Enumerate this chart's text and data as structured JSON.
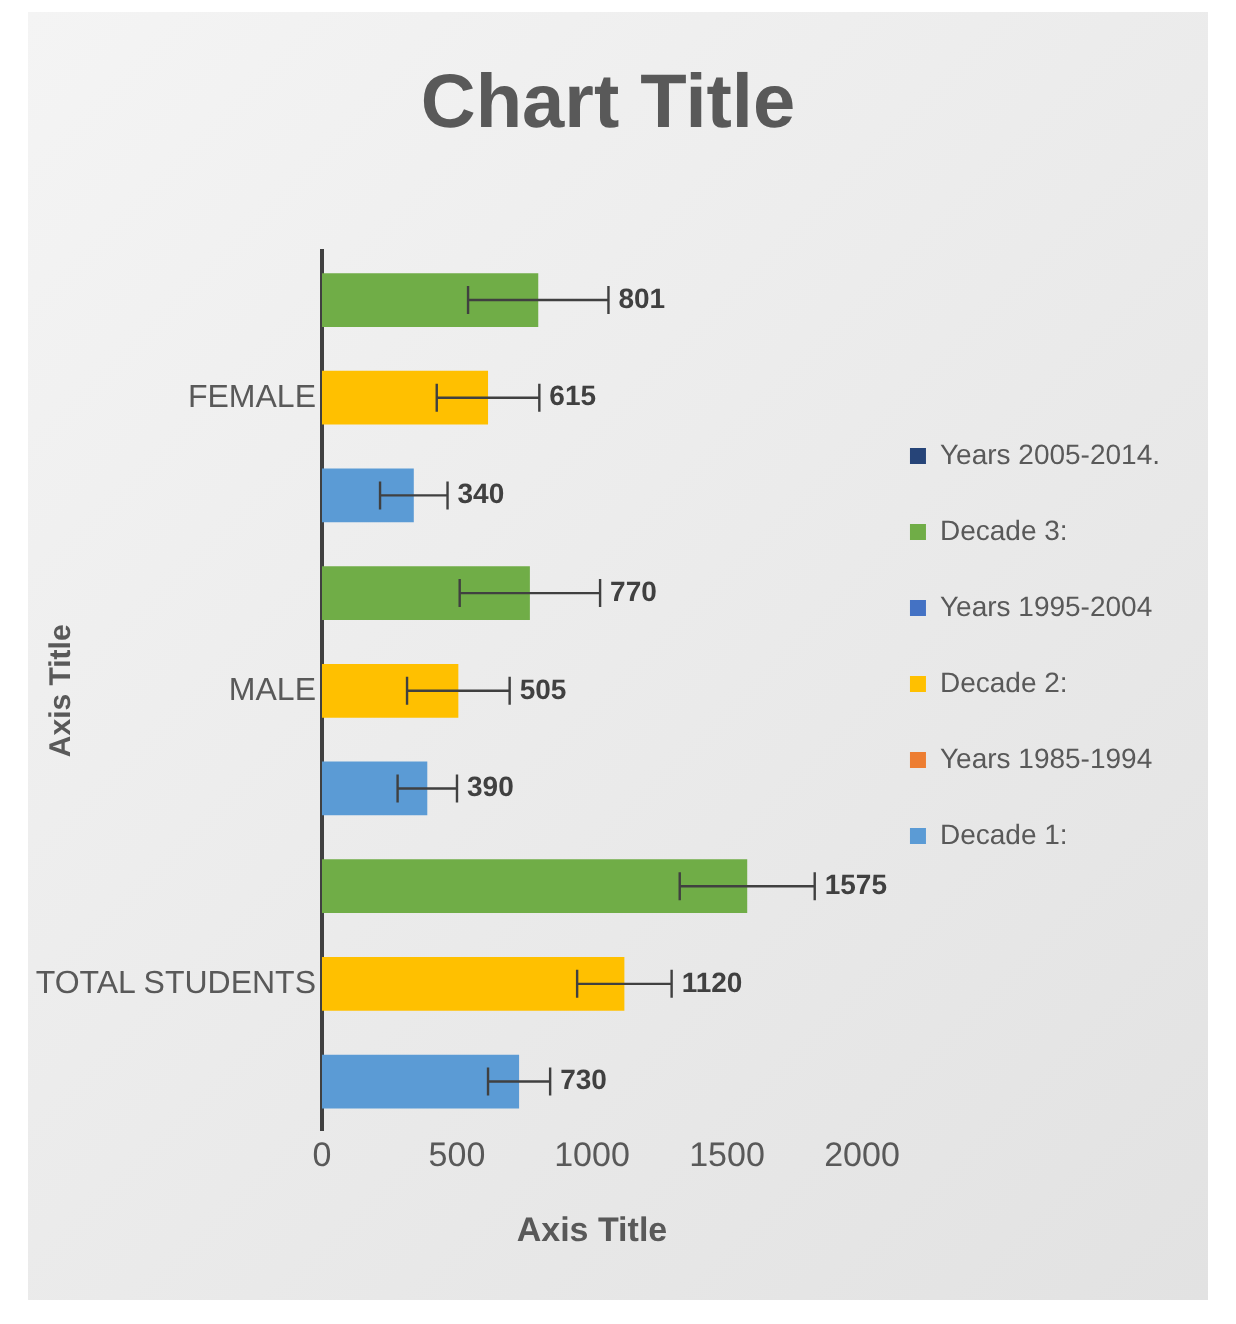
{
  "chart_data": {
    "type": "bar",
    "orientation": "horizontal",
    "title": "Chart Title",
    "xlabel": "Axis Title",
    "ylabel": "Axis Title",
    "categories": [
      "FEMALE",
      "MALE",
      "TOTAL STUDENTS"
    ],
    "series": [
      {
        "name": "Decade 1:",
        "color": "#5b9bd5",
        "values": [
          340,
          390,
          730
        ],
        "errors": [
          125,
          110,
          115
        ]
      },
      {
        "name": "Years 1985-1994",
        "color": "#ed7d31",
        "values": [
          null,
          null,
          null
        ]
      },
      {
        "name": "Decade 2:",
        "color": "#ffc000",
        "values": [
          615,
          505,
          1120
        ],
        "errors": [
          190,
          190,
          175
        ]
      },
      {
        "name": "Years 1995-2004",
        "color": "#4472c4",
        "values": [
          null,
          null,
          null
        ]
      },
      {
        "name": "Decade 3:",
        "color": "#70ad47",
        "values": [
          801,
          770,
          1575
        ],
        "errors": [
          260,
          260,
          250
        ]
      },
      {
        "name": "Years 2005-2014.",
        "color": "#264478",
        "values": [
          null,
          null,
          null
        ]
      }
    ],
    "xlim": [
      0,
      2000
    ],
    "xticks": [
      0,
      500,
      1000,
      1500,
      2000
    ],
    "grid": false,
    "legend": "right",
    "data_labels": true
  }
}
